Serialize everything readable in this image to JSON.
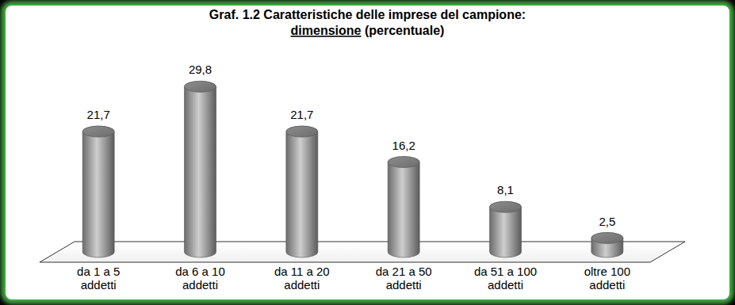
{
  "chart_data": {
    "type": "bar",
    "title": [
      "Graf. 1.2 Caratteristiche delle imprese del campione:",
      "dimensione (percentuale)"
    ],
    "categories": [
      "da 1 a 5 addetti",
      "da 6 a 10 addetti",
      "da 11 a 20 addetti",
      "da 21 a 50 addetti",
      "da 51 a 100 addetti",
      "oltre 100 addetti"
    ],
    "values": [
      21.7,
      29.8,
      21.7,
      16.2,
      8.1,
      2.5
    ],
    "value_labels": [
      "21,7",
      "29,8",
      "21,7",
      "16,2",
      "8,1",
      "2,5"
    ],
    "color": "#a6a6a6",
    "ylim": [
      0,
      30
    ],
    "data_labels": true,
    "tick_labels": "x",
    "grid": false
  }
}
